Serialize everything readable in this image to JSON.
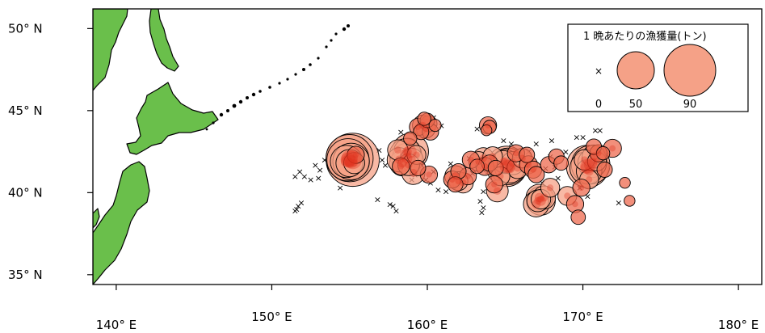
{
  "map": {
    "x_axis": {
      "ticks": [
        {
          "value": 140,
          "label": "140° E"
        },
        {
          "value": 150,
          "label": "150° E"
        },
        {
          "value": 160,
          "label": "160° E"
        },
        {
          "value": 170,
          "label": "170° E"
        },
        {
          "value": 180,
          "label": "180° E"
        }
      ]
    },
    "y_axis": {
      "ticks": [
        {
          "value": 50,
          "label": "50° N"
        },
        {
          "value": 45,
          "label": "45° N"
        },
        {
          "value": 40,
          "label": "40° N"
        },
        {
          "value": 35,
          "label": "35° N"
        }
      ]
    },
    "extent": {
      "lon": [
        138.5,
        181.5
      ],
      "lat": [
        34.4,
        51.2
      ]
    },
    "colors": {
      "land": "#6abf4b",
      "circle_fill": "#f5a187",
      "circle_dark": "#e0321e",
      "cross": "#000000"
    }
  },
  "legend": {
    "title": "1 晩あたりの漁獲量(トン)",
    "items": [
      {
        "label": "0",
        "value": 0
      },
      {
        "label": "50",
        "value": 50
      },
      {
        "label": "90",
        "value": 90
      }
    ]
  },
  "chart_data": {
    "type": "scatter",
    "title": "",
    "xlabel": "",
    "ylabel": "",
    "xlim": [
      138.5,
      181.5
    ],
    "ylim": [
      34.4,
      51.2
    ],
    "size_variable": "1 晩あたりの漁獲量(トン)",
    "zero_catch_points": [
      [
        151.5,
        41.0
      ],
      [
        151.8,
        41.3
      ],
      [
        152.1,
        41.0
      ],
      [
        152.5,
        40.8
      ],
      [
        152.8,
        41.7
      ],
      [
        153.1,
        41.4
      ],
      [
        153.0,
        40.9
      ],
      [
        153.4,
        42.0
      ],
      [
        153.9,
        42.4
      ],
      [
        154.2,
        42.6
      ],
      [
        154.6,
        40.9
      ],
      [
        154.4,
        40.3
      ],
      [
        151.6,
        39.0
      ],
      [
        151.7,
        39.2
      ],
      [
        151.9,
        39.4
      ],
      [
        151.5,
        38.9
      ],
      [
        156.8,
        39.6
      ],
      [
        157.6,
        39.3
      ],
      [
        157.8,
        39.2
      ],
      [
        158.0,
        38.9
      ],
      [
        156.9,
        42.6
      ],
      [
        157.1,
        42.0
      ],
      [
        157.3,
        41.7
      ],
      [
        158.3,
        43.7
      ],
      [
        158.6,
        42.9
      ],
      [
        159.2,
        41.1
      ],
      [
        159.0,
        40.8
      ],
      [
        159.9,
        40.8
      ],
      [
        160.4,
        41.3
      ],
      [
        159.6,
        44.1
      ],
      [
        160.9,
        44.1
      ],
      [
        160.4,
        44.6
      ],
      [
        159.8,
        44.6
      ],
      [
        160.2,
        40.6
      ],
      [
        160.7,
        40.2
      ],
      [
        161.2,
        40.1
      ],
      [
        161.5,
        41.8
      ],
      [
        162.7,
        42.1
      ],
      [
        162.9,
        41.2
      ],
      [
        163.6,
        41.4
      ],
      [
        163.9,
        41.3
      ],
      [
        163.6,
        40.1
      ],
      [
        163.2,
        43.9
      ],
      [
        163.4,
        39.5
      ],
      [
        163.6,
        39.1
      ],
      [
        163.5,
        38.8
      ],
      [
        164.9,
        43.2
      ],
      [
        165.4,
        43.0
      ],
      [
        166.0,
        41.7
      ],
      [
        166.5,
        42.5
      ],
      [
        167.0,
        43.0
      ],
      [
        167.6,
        41.5
      ],
      [
        167.9,
        42.2
      ],
      [
        168.2,
        41.6
      ],
      [
        168.4,
        40.9
      ],
      [
        167.4,
        40.6
      ],
      [
        168.9,
        42.5
      ],
      [
        169.4,
        41.9
      ],
      [
        169.6,
        43.4
      ],
      [
        170.0,
        43.4
      ],
      [
        170.8,
        43.8
      ],
      [
        171.1,
        43.8
      ],
      [
        171.5,
        42.3
      ],
      [
        169.8,
        40.3
      ],
      [
        170.3,
        39.8
      ],
      [
        172.3,
        39.4
      ],
      [
        168.0,
        43.2
      ]
    ],
    "catch_points": [
      [
        155.2,
        42.0,
        95
      ],
      [
        155.0,
        42.1,
        75
      ],
      [
        154.9,
        42.0,
        60
      ],
      [
        155.1,
        41.9,
        45
      ],
      [
        154.8,
        41.9,
        35
      ],
      [
        155.0,
        41.8,
        25
      ],
      [
        155.3,
        41.8,
        15
      ],
      [
        155.4,
        42.3,
        10
      ],
      [
        158.2,
        42.0,
        20
      ],
      [
        158.6,
        42.3,
        35
      ],
      [
        158.9,
        42.5,
        45
      ],
      [
        158.7,
        42.1,
        30
      ],
      [
        158.4,
        41.8,
        22
      ],
      [
        159.0,
        42.0,
        18
      ],
      [
        158.8,
        41.7,
        16
      ],
      [
        159.3,
        42.3,
        12
      ],
      [
        158.1,
        42.6,
        14
      ],
      [
        158.3,
        41.6,
        10
      ],
      [
        159.4,
        41.5,
        8
      ],
      [
        159.1,
        41.2,
        18
      ],
      [
        160.1,
        41.1,
        10
      ],
      [
        158.7,
        42.5,
        24
      ],
      [
        159.4,
        44.0,
        10
      ],
      [
        159.7,
        44.1,
        14
      ],
      [
        159.9,
        43.9,
        12
      ],
      [
        160.1,
        44.2,
        9
      ],
      [
        159.6,
        43.7,
        8
      ],
      [
        160.2,
        43.7,
        9
      ],
      [
        159.8,
        44.5,
        6
      ],
      [
        160.0,
        44.4,
        7
      ],
      [
        160.5,
        44.1,
        5
      ],
      [
        158.9,
        43.3,
        6
      ],
      [
        163.9,
        44.1,
        10
      ],
      [
        164.0,
        44.0,
        6
      ],
      [
        163.8,
        43.8,
        4
      ],
      [
        161.8,
        41.0,
        15
      ],
      [
        162.0,
        40.7,
        12
      ],
      [
        161.6,
        40.8,
        10
      ],
      [
        162.3,
        40.6,
        14
      ],
      [
        162.0,
        41.3,
        8
      ],
      [
        161.8,
        40.5,
        8
      ],
      [
        162.6,
        41.0,
        10
      ],
      [
        162.8,
        42.0,
        10
      ],
      [
        163.3,
        41.9,
        13
      ],
      [
        163.6,
        42.1,
        15
      ],
      [
        163.7,
        41.6,
        11
      ],
      [
        164.0,
        41.8,
        9
      ],
      [
        164.2,
        42.2,
        13
      ],
      [
        164.4,
        41.5,
        8
      ],
      [
        163.2,
        41.6,
        7
      ],
      [
        164.5,
        40.1,
        16
      ],
      [
        164.3,
        40.5,
        10
      ],
      [
        164.7,
        41.0,
        12
      ],
      [
        164.9,
        41.9,
        16
      ],
      [
        165.1,
        41.6,
        55
      ],
      [
        165.2,
        41.6,
        45
      ],
      [
        165.3,
        41.5,
        30
      ],
      [
        165.0,
        41.9,
        20
      ],
      [
        165.5,
        41.8,
        18
      ],
      [
        165.8,
        41.5,
        15
      ],
      [
        166.1,
        42.1,
        13
      ],
      [
        166.5,
        41.7,
        11
      ],
      [
        166.8,
        41.4,
        10
      ],
      [
        167.0,
        41.1,
        9
      ],
      [
        165.7,
        42.4,
        10
      ],
      [
        166.4,
        42.3,
        8
      ],
      [
        167.9,
        40.3,
        12
      ],
      [
        167.8,
        41.7,
        9
      ],
      [
        168.3,
        42.2,
        8
      ],
      [
        168.6,
        41.8,
        7
      ],
      [
        167.2,
        39.7,
        24
      ],
      [
        167.3,
        39.5,
        28
      ],
      [
        167.0,
        39.3,
        22
      ],
      [
        167.5,
        39.7,
        18
      ],
      [
        167.1,
        39.5,
        16
      ],
      [
        167.3,
        39.6,
        13
      ],
      [
        169.0,
        39.8,
        12
      ],
      [
        169.5,
        39.3,
        10
      ],
      [
        169.7,
        38.5,
        7
      ],
      [
        170.3,
        41.6,
        60
      ],
      [
        170.5,
        41.7,
        50
      ],
      [
        170.2,
        41.5,
        35
      ],
      [
        170.6,
        41.8,
        28
      ],
      [
        170.4,
        41.3,
        22
      ],
      [
        170.7,
        42.2,
        18
      ],
      [
        170.1,
        42.0,
        14
      ],
      [
        170.9,
        41.9,
        12
      ],
      [
        171.0,
        42.4,
        10
      ],
      [
        170.7,
        42.8,
        8
      ],
      [
        171.3,
        42.4,
        6
      ],
      [
        171.9,
        42.7,
        11
      ],
      [
        171.4,
        41.4,
        8
      ],
      [
        170.4,
        40.8,
        12
      ],
      [
        169.9,
        40.3,
        10
      ],
      [
        173.0,
        39.5,
        4
      ],
      [
        172.7,
        40.6,
        4
      ]
    ]
  }
}
